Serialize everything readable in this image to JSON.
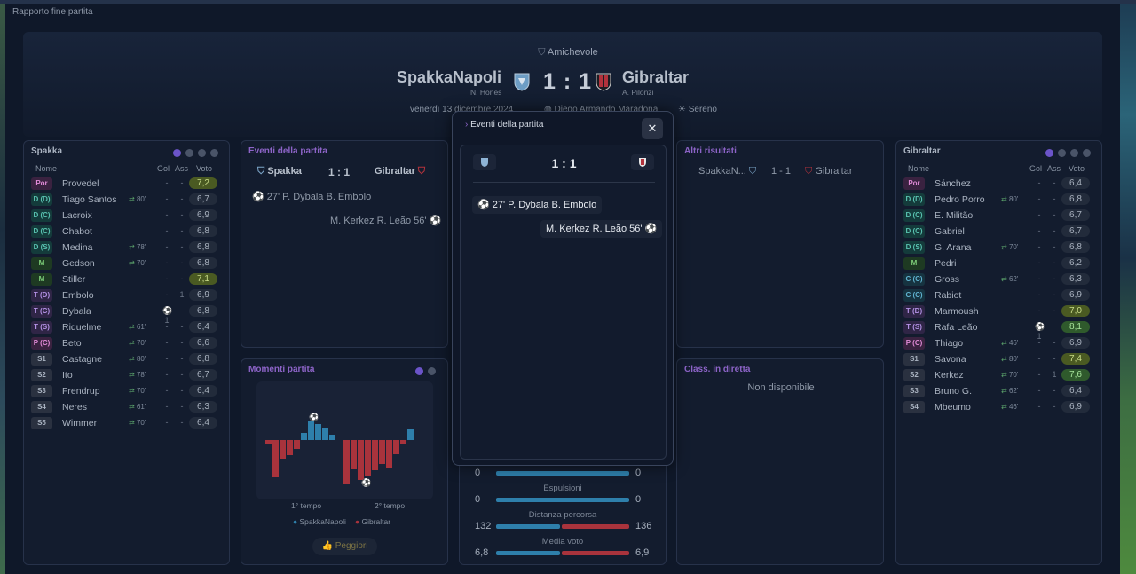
{
  "window": {
    "title": "Rapporto fine partita"
  },
  "header": {
    "competition": "Amichevole",
    "home": {
      "name": "SpakkaNapoli",
      "manager": "N. Hones"
    },
    "away": {
      "name": "Gibraltar",
      "manager": "A. Pilonzi"
    },
    "score": "1 : 1",
    "date": "venerdì 13 dicembre 2024",
    "venue": "Diego Armando Maradona",
    "weather": "Sereno"
  },
  "columns": {
    "name": "Nome",
    "goals": "Gol",
    "assists": "Ass",
    "rating": "Voto"
  },
  "home_panel": {
    "title": "Spakka",
    "players": [
      {
        "pos": "Por",
        "name": "Provedel",
        "sub": "",
        "gol": "-",
        "ass": "-",
        "rating": "7,2",
        "hl": "y"
      },
      {
        "pos": "D (D)",
        "name": "Tiago Santos",
        "sub": "80'",
        "gol": "-",
        "ass": "-",
        "rating": "6,7"
      },
      {
        "pos": "D (C)",
        "name": "Lacroix",
        "sub": "",
        "gol": "-",
        "ass": "-",
        "rating": "6,9"
      },
      {
        "pos": "D (C)",
        "name": "Chabot",
        "sub": "",
        "gol": "-",
        "ass": "-",
        "rating": "6,8"
      },
      {
        "pos": "D (S)",
        "name": "Medina",
        "sub": "78'",
        "gol": "-",
        "ass": "-",
        "rating": "6,8"
      },
      {
        "pos": "M",
        "name": "Gedson",
        "sub": "70'",
        "gol": "-",
        "ass": "-",
        "rating": "6,8"
      },
      {
        "pos": "M",
        "name": "Stiller",
        "sub": "",
        "gol": "-",
        "ass": "-",
        "rating": "7,1",
        "hl": "y"
      },
      {
        "pos": "T (D)",
        "name": "Embolo",
        "sub": "",
        "gol": "-",
        "ass": "1",
        "rating": "6,9"
      },
      {
        "pos": "T (C)",
        "name": "Dybala",
        "sub": "",
        "gol": "⚽1",
        "ass": "",
        "rating": "6,8"
      },
      {
        "pos": "T (S)",
        "name": "Riquelme",
        "sub": "61'",
        "gol": "-",
        "ass": "-",
        "rating": "6,4"
      },
      {
        "pos": "P (C)",
        "name": "Beto",
        "sub": "70'",
        "gol": "-",
        "ass": "-",
        "rating": "6,6"
      },
      {
        "pos": "S1",
        "name": "Castagne",
        "sub": "80'",
        "gol": "-",
        "ass": "-",
        "rating": "6,8"
      },
      {
        "pos": "S2",
        "name": "Ito",
        "sub": "78'",
        "gol": "-",
        "ass": "-",
        "rating": "6,7"
      },
      {
        "pos": "S3",
        "name": "Frendrup",
        "sub": "70'",
        "gol": "-",
        "ass": "-",
        "rating": "6,4"
      },
      {
        "pos": "S4",
        "name": "Neres",
        "sub": "61'",
        "gol": "-",
        "ass": "-",
        "rating": "6,3"
      },
      {
        "pos": "S5",
        "name": "Wimmer",
        "sub": "70'",
        "gol": "-",
        "ass": "-",
        "rating": "6,4"
      }
    ]
  },
  "away_panel": {
    "title": "Gibraltar",
    "players": [
      {
        "pos": "Por",
        "name": "Sánchez",
        "sub": "",
        "gol": "-",
        "ass": "-",
        "rating": "6,4"
      },
      {
        "pos": "D (D)",
        "name": "Pedro Porro",
        "sub": "80'",
        "gol": "-",
        "ass": "-",
        "rating": "6,8"
      },
      {
        "pos": "D (C)",
        "name": "E. Militão",
        "sub": "",
        "gol": "-",
        "ass": "-",
        "rating": "6,7"
      },
      {
        "pos": "D (C)",
        "name": "Gabriel",
        "sub": "",
        "gol": "-",
        "ass": "-",
        "rating": "6,7"
      },
      {
        "pos": "D (S)",
        "name": "G. Arana",
        "sub": "70'",
        "gol": "-",
        "ass": "-",
        "rating": "6,8"
      },
      {
        "pos": "M",
        "name": "Pedri",
        "sub": "",
        "gol": "-",
        "ass": "-",
        "rating": "6,2"
      },
      {
        "pos": "C (C)",
        "name": "Gross",
        "sub": "62'",
        "gol": "-",
        "ass": "-",
        "rating": "6,3"
      },
      {
        "pos": "C (C)",
        "name": "Rabiot",
        "sub": "",
        "gol": "-",
        "ass": "-",
        "rating": "6,9"
      },
      {
        "pos": "T (D)",
        "name": "Marmoush",
        "sub": "",
        "gol": "-",
        "ass": "-",
        "rating": "7,0",
        "hl": "y"
      },
      {
        "pos": "T (S)",
        "name": "Rafa Leão",
        "sub": "",
        "gol": "⚽1",
        "ass": "",
        "rating": "8,1",
        "hl": "g"
      },
      {
        "pos": "P (C)",
        "name": "Thiago",
        "sub": "46'",
        "gol": "-",
        "ass": "-",
        "rating": "6,9"
      },
      {
        "pos": "S1",
        "name": "Savona",
        "sub": "80'",
        "gol": "-",
        "ass": "-",
        "rating": "7,4",
        "hl": "y"
      },
      {
        "pos": "S2",
        "name": "Kerkez",
        "sub": "70'",
        "gol": "-",
        "ass": "1",
        "rating": "7,6",
        "hl": "g"
      },
      {
        "pos": "S3",
        "name": "Bruno G.",
        "sub": "62'",
        "gol": "-",
        "ass": "-",
        "rating": "6,4"
      },
      {
        "pos": "S4",
        "name": "Mbeumo",
        "sub": "46'",
        "gol": "-",
        "ass": "-",
        "rating": "6,9"
      }
    ]
  },
  "events_panel": {
    "title": "Eventi della partita",
    "home": "Spakka",
    "away": "Gibraltar",
    "score": "1 : 1",
    "ev1": "27' P. Dybala B. Embolo",
    "ev2": "M. Kerkez R. Leão 56'"
  },
  "other_results": {
    "title": "Altri risultati",
    "home": "SpakkaN...",
    "score": "1 - 1",
    "away": "Gibraltar"
  },
  "moments": {
    "title": "Momenti partita",
    "first_half": "1° tempo",
    "second_half": "2° tempo",
    "legend_home": "SpakkaNapoli",
    "legend_away": "Gibraltar",
    "button": "Peggiori"
  },
  "live_table": {
    "title": "Class. in diretta",
    "empty": "Non disponibile"
  },
  "stats": {
    "rows": [
      {
        "label": "",
        "home": "0",
        "away": "0",
        "home_val": 0,
        "away_val": 0
      },
      {
        "label": "Espulsioni",
        "home": "0",
        "away": "0",
        "home_val": 0,
        "away_val": 0
      },
      {
        "label": "Distanza percorsa",
        "home": "132",
        "away": "136",
        "home_val": 132,
        "away_val": 136
      },
      {
        "label": "Media voto",
        "home": "6,8",
        "away": "6,9",
        "home_val": 6.8,
        "away_val": 6.9
      }
    ]
  },
  "modal": {
    "title": "Eventi della partita",
    "score": "1 : 1",
    "ev1": "27' P. Dybala B. Embolo",
    "ev2": "M. Kerkez R. Leão 56'",
    "close": "✕"
  },
  "colors": {
    "home": "#2e7fab",
    "away": "#a8333c",
    "accent": "#6b54c9"
  }
}
